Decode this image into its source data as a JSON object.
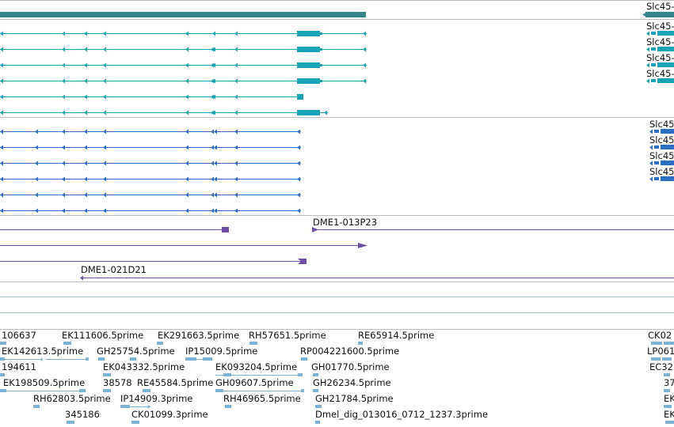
{
  "colors": {
    "summary": "#35868c",
    "transcript_a": "#16a5b8",
    "transcript_b": "#2b6fc7",
    "clone": "#6f4ea8",
    "est": "#7ab3d6",
    "divider": "#bdbdbd",
    "empty_track": "#9ac2c4"
  },
  "gene_summary": {
    "right_label": "Slc45-"
  },
  "transcripts_a": [
    {
      "right_label": "Slc45-"
    },
    {
      "right_label": "Slc45-"
    },
    {
      "right_label": "Slc45-"
    },
    {
      "right_label": "Slc45-"
    },
    {
      "right_label": ""
    },
    {
      "right_label": ""
    }
  ],
  "transcripts_b": [
    {
      "right_label": "Slc45"
    },
    {
      "right_label": "Slc45"
    },
    {
      "right_label": "Slc45"
    },
    {
      "right_label": "Slc45"
    },
    {
      "right_label": ""
    },
    {
      "right_label": ""
    }
  ],
  "clones": [
    {
      "label": ""
    },
    {
      "label": "DME1-013P23"
    },
    {
      "label": ""
    },
    {
      "label": "DME1-021D21"
    }
  ],
  "ests": [
    "106637",
    "EK111606.5prime",
    "EK291663.5prime",
    "RH57651.5prime",
    "RE65914.5prime",
    "CK02",
    "EK142613.5prime",
    "GH25754.5prime",
    "IP15009.5prime",
    "RP004221600.5prime",
    "LP061",
    "194611",
    "EK043332.5prime",
    "EK093204.5prime",
    "GH01770.5prime",
    "EC32",
    "EK198509.5prime",
    "38578",
    "RE45584.5prime",
    "GH09607.5prime",
    "GH26234.5prime",
    "37",
    "RH62803.5prime",
    "IP14909.3prime",
    "RH46965.5prime",
    "GH21784.5prime",
    "EK",
    "345186",
    "CK01099.3prime",
    "Dmel_dig_013016_0712_1237.3prime",
    "EK"
  ]
}
